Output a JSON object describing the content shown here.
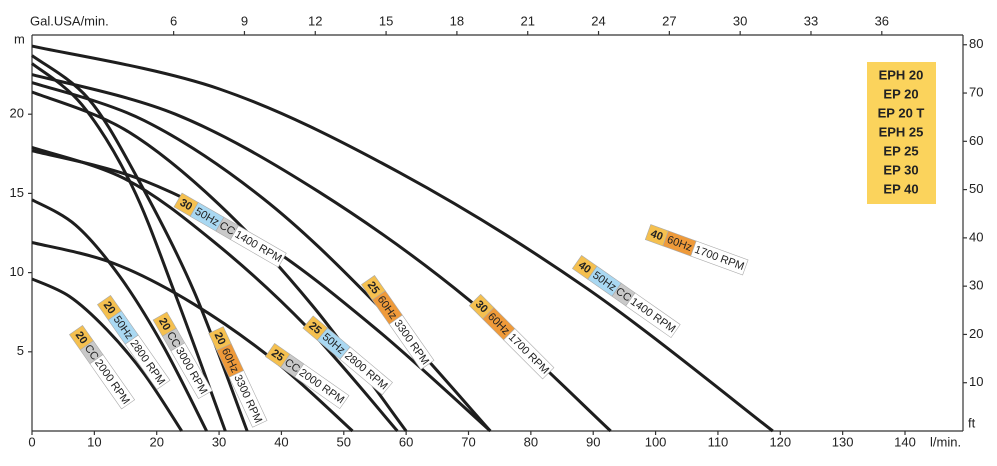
{
  "chart_data": {
    "type": "line",
    "x_label": "l/min.",
    "x2_label": "Gal.USA/min.",
    "y_label": "m",
    "y2_label": "ft",
    "xlim": [
      0,
      149.3
    ],
    "xticks": [
      0,
      10,
      20,
      30,
      40,
      50,
      60,
      70,
      80,
      90,
      100,
      110,
      120,
      130,
      140
    ],
    "x2lim": [
      0,
      39.44
    ],
    "x2ticks": [
      6,
      9,
      12,
      15,
      18,
      21,
      24,
      27,
      30,
      33,
      36
    ],
    "ylim": [
      0,
      25
    ],
    "yticks": [
      5,
      10,
      15,
      20
    ],
    "y2lim": [
      0,
      82.02
    ],
    "y2ticks": [
      10,
      20,
      30,
      40,
      50,
      60,
      70,
      80
    ],
    "line_color": "#1e1e1e",
    "models": [
      "EPH 20",
      "EP 20",
      "EP 20 T",
      "EPH 25",
      "EP 25",
      "EP 30",
      "EP 40"
    ],
    "series": [
      {
        "size": "20",
        "cc": "CC",
        "rpm": "2000 RPM",
        "x": [
          0,
          6,
          12,
          18,
          24
        ],
        "y": [
          9.6,
          8.5,
          6.4,
          3.6,
          0
        ]
      },
      {
        "size": "20",
        "hz": "50Hz",
        "rpm": "2800 RPM",
        "x": [
          0,
          7,
          14,
          21,
          28
        ],
        "y": [
          14.6,
          13,
          9.8,
          5.4,
          0
        ]
      },
      {
        "size": "20",
        "cc": "CC",
        "rpm": "3000 RPM",
        "x": [
          0,
          8,
          16,
          23,
          31
        ],
        "y": [
          23.2,
          20.6,
          15.5,
          8.6,
          0
        ]
      },
      {
        "size": "20",
        "hz": "60Hz",
        "rpm": "3300 RPM",
        "x": [
          0,
          9,
          17,
          26,
          34.5
        ],
        "y": [
          23.7,
          21,
          15.9,
          8.8,
          0
        ]
      },
      {
        "size": "25",
        "cc": "CC",
        "rpm": "2000 RPM",
        "x": [
          0,
          13,
          26,
          39,
          51.4
        ],
        "y": [
          11.9,
          10.6,
          8,
          4.4,
          0
        ]
      },
      {
        "size": "25",
        "hz": "50Hz",
        "rpm": "2800 RPM",
        "x": [
          0,
          15,
          29,
          44,
          58.6
        ],
        "y": [
          17.9,
          15.9,
          12,
          6.6,
          0
        ]
      },
      {
        "size": "25",
        "hz": "60Hz",
        "rpm": "3300 RPM",
        "x": [
          0,
          18,
          37,
          55,
          73.5
        ],
        "y": [
          22,
          19.6,
          14.7,
          8.1,
          0
        ]
      },
      {
        "size": "30",
        "hz": "50Hz",
        "cc": "CC",
        "rpm": "1400 RPM",
        "x": [
          0,
          15,
          30,
          45,
          60
        ],
        "y": [
          21.4,
          19,
          14.3,
          7.9,
          0
        ]
      },
      {
        "size": "30",
        "hz": "60Hz",
        "rpm": "1700 RPM",
        "x": [
          0,
          18,
          37,
          55,
          73.5
        ],
        "y": [
          17.7,
          15.8,
          11.9,
          6.5,
          0
        ]
      },
      {
        "size": "40",
        "hz": "50Hz",
        "cc": "CC",
        "rpm": "1400 RPM",
        "x": [
          0,
          23,
          46,
          70,
          92.8
        ],
        "y": [
          22.5,
          20,
          15.1,
          8.3,
          0
        ]
      },
      {
        "size": "40",
        "hz": "60Hz",
        "rpm": "1700 RPM",
        "x": [
          0,
          30,
          59,
          89,
          118.8
        ],
        "y": [
          24.3,
          21.6,
          16.3,
          9,
          0
        ]
      }
    ]
  }
}
